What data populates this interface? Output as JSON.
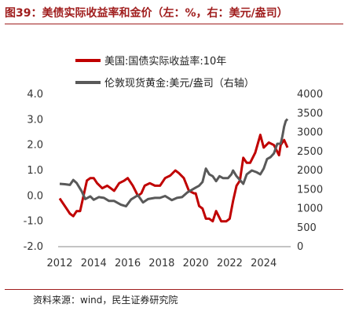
{
  "title": "图39：美债实际收益率和金价（左：%，右：美元/盎司）",
  "source": "资料来源：wind，民生证券研究院",
  "chart_data": {
    "type": "line",
    "x_ticks": [
      "2012",
      "2014",
      "2016",
      "2018",
      "2020",
      "2022",
      "2024"
    ],
    "xlim": [
      2012,
      2025.4
    ],
    "ylim_left": [
      -2.0,
      4.0
    ],
    "yticks_left": [
      "-2.0",
      "-1.0",
      "0.0",
      "1.0",
      "2.0",
      "3.0",
      "4.0"
    ],
    "ylim_right": [
      0,
      4000
    ],
    "yticks_right": [
      "0",
      "500",
      "1000",
      "1500",
      "2000",
      "2500",
      "3000",
      "3500",
      "4000"
    ],
    "legend_position": "top-left",
    "series": [
      {
        "name": "美国:国债实际收益率:10年",
        "axis": "left",
        "color": "#c00000",
        "points": [
          [
            2012.0,
            -0.1
          ],
          [
            2012.2,
            -0.3
          ],
          [
            2012.4,
            -0.5
          ],
          [
            2012.6,
            -0.7
          ],
          [
            2012.8,
            -0.8
          ],
          [
            2013.0,
            -0.6
          ],
          [
            2013.2,
            -0.6
          ],
          [
            2013.4,
            0.0
          ],
          [
            2013.6,
            0.6
          ],
          [
            2013.8,
            0.7
          ],
          [
            2014.0,
            0.7
          ],
          [
            2014.2,
            0.5
          ],
          [
            2014.5,
            0.3
          ],
          [
            2014.8,
            0.4
          ],
          [
            2015.0,
            0.3
          ],
          [
            2015.2,
            0.2
          ],
          [
            2015.5,
            0.5
          ],
          [
            2015.8,
            0.6
          ],
          [
            2016.0,
            0.7
          ],
          [
            2016.3,
            0.4
          ],
          [
            2016.6,
            0.0
          ],
          [
            2016.8,
            0.1
          ],
          [
            2017.0,
            0.4
          ],
          [
            2017.3,
            0.5
          ],
          [
            2017.6,
            0.4
          ],
          [
            2017.9,
            0.4
          ],
          [
            2018.2,
            0.7
          ],
          [
            2018.5,
            0.8
          ],
          [
            2018.8,
            1.0
          ],
          [
            2019.0,
            0.9
          ],
          [
            2019.3,
            0.7
          ],
          [
            2019.6,
            0.2
          ],
          [
            2019.9,
            0.1
          ],
          [
            2020.0,
            0.1
          ],
          [
            2020.2,
            -0.4
          ],
          [
            2020.4,
            -0.5
          ],
          [
            2020.6,
            -0.9
          ],
          [
            2020.8,
            -0.9
          ],
          [
            2021.0,
            -1.0
          ],
          [
            2021.2,
            -0.6
          ],
          [
            2021.5,
            -1.0
          ],
          [
            2021.8,
            -1.0
          ],
          [
            2022.0,
            -0.9
          ],
          [
            2022.2,
            -0.2
          ],
          [
            2022.4,
            0.4
          ],
          [
            2022.6,
            0.6
          ],
          [
            2022.8,
            1.5
          ],
          [
            2023.0,
            1.3
          ],
          [
            2023.2,
            1.3
          ],
          [
            2023.5,
            1.7
          ],
          [
            2023.8,
            2.4
          ],
          [
            2024.0,
            1.9
          ],
          [
            2024.3,
            2.1
          ],
          [
            2024.6,
            2.0
          ],
          [
            2024.9,
            1.6
          ],
          [
            2025.0,
            2.0
          ],
          [
            2025.2,
            2.2
          ],
          [
            2025.4,
            1.9
          ]
        ]
      },
      {
        "name": "伦敦现货黄金:美元/盎司（右轴）",
        "axis": "right",
        "color": "#595959",
        "points": [
          [
            2012.0,
            1650
          ],
          [
            2012.3,
            1640
          ],
          [
            2012.6,
            1620
          ],
          [
            2012.8,
            1750
          ],
          [
            2013.0,
            1670
          ],
          [
            2013.3,
            1450
          ],
          [
            2013.5,
            1250
          ],
          [
            2013.8,
            1320
          ],
          [
            2014.0,
            1230
          ],
          [
            2014.3,
            1300
          ],
          [
            2014.6,
            1280
          ],
          [
            2014.9,
            1200
          ],
          [
            2015.2,
            1200
          ],
          [
            2015.6,
            1100
          ],
          [
            2015.9,
            1060
          ],
          [
            2016.2,
            1240
          ],
          [
            2016.6,
            1350
          ],
          [
            2016.9,
            1160
          ],
          [
            2017.2,
            1250
          ],
          [
            2017.6,
            1280
          ],
          [
            2017.9,
            1280
          ],
          [
            2018.2,
            1330
          ],
          [
            2018.6,
            1220
          ],
          [
            2018.9,
            1280
          ],
          [
            2019.2,
            1300
          ],
          [
            2019.5,
            1420
          ],
          [
            2019.8,
            1500
          ],
          [
            2020.0,
            1550
          ],
          [
            2020.2,
            1600
          ],
          [
            2020.4,
            1700
          ],
          [
            2020.6,
            2050
          ],
          [
            2020.8,
            1900
          ],
          [
            2021.0,
            1850
          ],
          [
            2021.2,
            1720
          ],
          [
            2021.4,
            1850
          ],
          [
            2021.6,
            1800
          ],
          [
            2021.9,
            1800
          ],
          [
            2022.1,
            1900
          ],
          [
            2022.2,
            2000
          ],
          [
            2022.4,
            1850
          ],
          [
            2022.6,
            1750
          ],
          [
            2022.8,
            1650
          ],
          [
            2023.0,
            1900
          ],
          [
            2023.3,
            2000
          ],
          [
            2023.6,
            1950
          ],
          [
            2023.8,
            1900
          ],
          [
            2024.0,
            2050
          ],
          [
            2024.2,
            2300
          ],
          [
            2024.4,
            2350
          ],
          [
            2024.6,
            2450
          ],
          [
            2024.8,
            2700
          ],
          [
            2025.0,
            2700
          ],
          [
            2025.1,
            2900
          ],
          [
            2025.2,
            3150
          ],
          [
            2025.3,
            3300
          ],
          [
            2025.4,
            3350
          ]
        ]
      }
    ]
  }
}
